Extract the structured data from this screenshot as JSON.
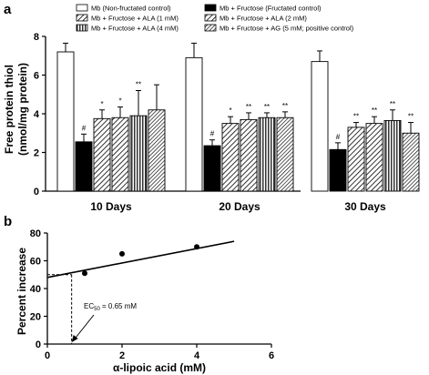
{
  "chart_data": [
    {
      "panel": "a",
      "type": "bar",
      "ylabel_line1": "Free protein thiol",
      "ylabel_line2": "(nmol/mg protein)",
      "ylim": [
        0,
        8
      ],
      "yticks": [
        0,
        2,
        4,
        6,
        8
      ],
      "categories": [
        "10 Days",
        "20 Days",
        "30 Days"
      ],
      "series": [
        {
          "name": "Mb (Non-fructated control)",
          "pattern": "white",
          "values": [
            7.2,
            6.9,
            6.7
          ],
          "errors": [
            0.45,
            0.75,
            0.55
          ],
          "marks": [
            "",
            "",
            ""
          ]
        },
        {
          "name": "Mb + Fructose (Fructated control)",
          "pattern": "black",
          "values": [
            2.55,
            2.35,
            2.15
          ],
          "errors": [
            0.4,
            0.3,
            0.35
          ],
          "marks": [
            "#",
            "#",
            "#"
          ]
        },
        {
          "name": "Mb + Fructose + ALA (1 mM)",
          "pattern": "diagonal",
          "values": [
            3.75,
            3.5,
            3.3
          ],
          "errors": [
            0.45,
            0.35,
            0.25
          ],
          "marks": [
            "*",
            "*",
            "**"
          ]
        },
        {
          "name": "Mb + Fructose + ALA (2 mM)",
          "pattern": "diagonal",
          "values": [
            3.8,
            3.7,
            3.5
          ],
          "errors": [
            0.55,
            0.35,
            0.35
          ],
          "marks": [
            "*",
            "**",
            "**"
          ]
        },
        {
          "name": "Mb + Fructose + ALA (4 mM)",
          "pattern": "vertical",
          "values": [
            3.9,
            3.8,
            3.65
          ],
          "errors": [
            1.3,
            0.25,
            0.55
          ],
          "marks": [
            "**",
            "**",
            "**"
          ]
        },
        {
          "name": "Mb + Fructose + AG (5 mM; positive control)",
          "pattern": "diagonal-dense",
          "values": [
            4.2,
            3.8,
            3.0
          ],
          "errors": [
            1.3,
            0.3,
            0.55
          ],
          "marks": [
            "",
            "**",
            "**"
          ]
        }
      ],
      "legend_placement": "top"
    },
    {
      "panel": "b",
      "type": "scatter",
      "xlabel": "α-lipoic acid (mM)",
      "ylabel": "Percent increase",
      "xlim": [
        0,
        6
      ],
      "ylim": [
        0,
        80
      ],
      "xticks": [
        0,
        2,
        4,
        6
      ],
      "yticks": [
        0,
        20,
        40,
        60,
        80
      ],
      "points": [
        {
          "x": 1,
          "y": 51
        },
        {
          "x": 2,
          "y": 65
        },
        {
          "x": 4,
          "y": 70
        }
      ],
      "fit_line": {
        "x": [
          0,
          5
        ],
        "y": [
          48,
          74
        ]
      },
      "ec50_x": 0.65,
      "ec50_y": 50,
      "annotation": {
        "prefix": "EC",
        "sub": "50",
        "suffix": " = 0.65 mM"
      }
    }
  ],
  "colors": {
    "bar_stroke": "#000000",
    "background": "#ffffff"
  }
}
